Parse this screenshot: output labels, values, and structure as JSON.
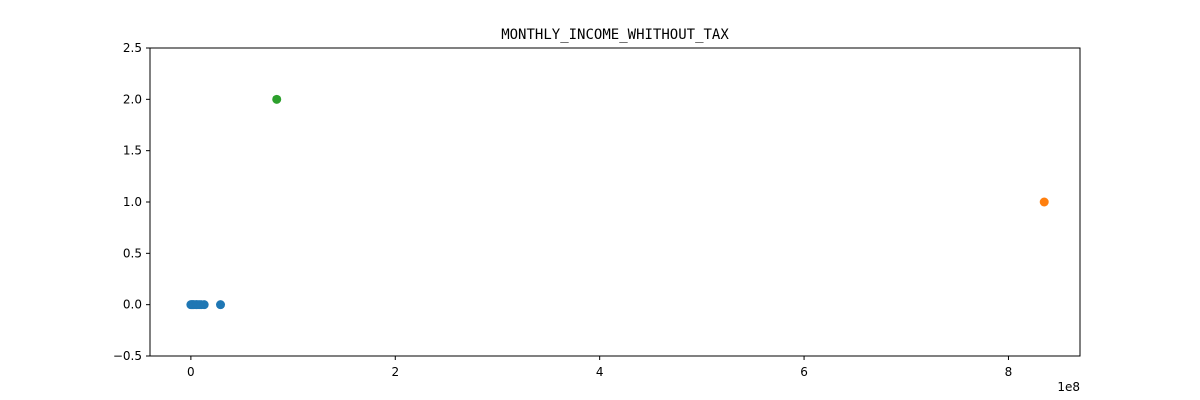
{
  "chart_data": {
    "type": "scatter",
    "title": "MONTHLY_INCOME_WHITHOUT_TAX",
    "xlabel": "",
    "ylabel": "",
    "x_offset_label": "1e8",
    "xlim": [
      -0.4,
      8.7
    ],
    "ylim": [
      -0.5,
      2.5
    ],
    "x_ticks": [
      0,
      2,
      4,
      6,
      8
    ],
    "x_tick_labels": [
      "0",
      "2",
      "4",
      "6",
      "8"
    ],
    "y_ticks": [
      -0.5,
      0.0,
      0.5,
      1.0,
      1.5,
      2.0,
      2.5
    ],
    "y_tick_labels": [
      "−0.5",
      "0.0",
      "0.5",
      "1.0",
      "1.5",
      "2.0",
      "2.5"
    ],
    "grid": false,
    "series": [
      {
        "color": "#1f77b4",
        "points": [
          {
            "x": 0.0,
            "y": 0
          },
          {
            "x": 0.01,
            "y": 0
          },
          {
            "x": 0.02,
            "y": 0
          },
          {
            "x": 0.03,
            "y": 0
          },
          {
            "x": 0.05,
            "y": 0
          },
          {
            "x": 0.06,
            "y": 0
          },
          {
            "x": 0.08,
            "y": 0
          },
          {
            "x": 0.1,
            "y": 0
          },
          {
            "x": 0.13,
            "y": 0
          },
          {
            "x": 0.29,
            "y": 0
          }
        ]
      },
      {
        "color": "#ff7f0e",
        "points": [
          {
            "x": 8.35,
            "y": 1
          }
        ]
      },
      {
        "color": "#2ca02c",
        "points": [
          {
            "x": 0.84,
            "y": 2
          }
        ]
      }
    ]
  }
}
